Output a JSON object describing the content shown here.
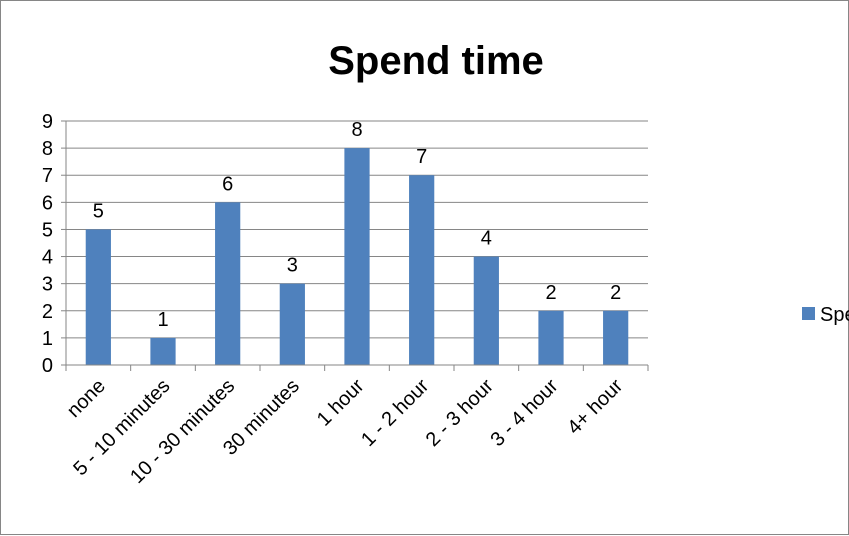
{
  "chart_data": {
    "type": "bar",
    "title": "Spend time",
    "xlabel": "",
    "ylabel": "",
    "categories": [
      "none",
      "5 - 10 minutes",
      "10 - 30 minutes",
      "30 minutes",
      "1 hour",
      "1 - 2 hour",
      "2 - 3 hour",
      "3 - 4 hour",
      "4+ hour"
    ],
    "series": [
      {
        "name": "Spend time",
        "values": [
          5,
          1,
          6,
          3,
          8,
          7,
          4,
          2,
          2
        ],
        "color": "#4F81BD"
      }
    ],
    "ylim": [
      0,
      9
    ],
    "yticks": [
      "0",
      "1",
      "2",
      "3",
      "4",
      "5",
      "6",
      "7",
      "8",
      "9"
    ],
    "grid": true,
    "data_labels": true,
    "legend": {
      "position": "right"
    }
  }
}
